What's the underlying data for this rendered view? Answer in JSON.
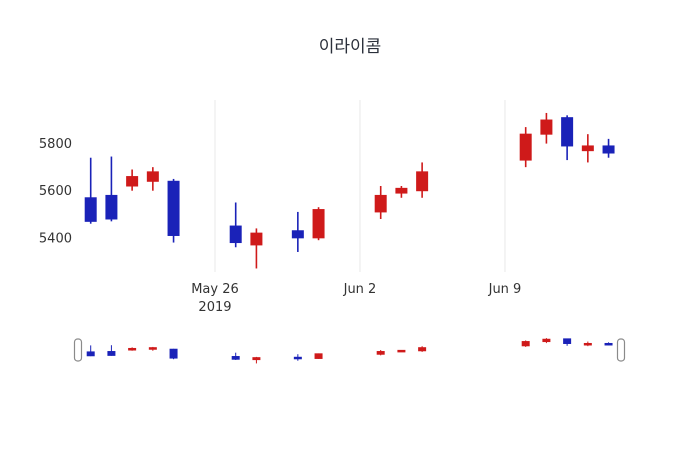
{
  "chart_data": {
    "type": "candlestick",
    "title": "이라이콤",
    "increasing_color": "#cf1a1a",
    "decreasing_color": "#1a22b8",
    "grid_color": "#e8e8e8",
    "text_color": "#333333",
    "background_color": "#ffffff",
    "legend": "none",
    "grid": "vertical-only",
    "ylim": [
      5255,
      5985
    ],
    "y_ticks": [
      5400,
      5600,
      5800
    ],
    "x_ticks": [
      {
        "day": 6,
        "label": "May 26",
        "sublabel": "2019"
      },
      {
        "day": 13,
        "label": "Jun 2",
        "sublabel": ""
      },
      {
        "day": 20,
        "label": "Jun 9",
        "sublabel": ""
      }
    ],
    "candles": [
      {
        "date": "2019-05-20",
        "day": 0,
        "open": 5570,
        "high": 5740,
        "low": 5460,
        "close": 5470
      },
      {
        "date": "2019-05-21",
        "day": 1,
        "open": 5580,
        "high": 5745,
        "low": 5470,
        "close": 5480
      },
      {
        "date": "2019-05-22",
        "day": 2,
        "open": 5620,
        "high": 5690,
        "low": 5600,
        "close": 5660
      },
      {
        "date": "2019-05-23",
        "day": 3,
        "open": 5640,
        "high": 5700,
        "low": 5600,
        "close": 5680
      },
      {
        "date": "2019-05-24",
        "day": 4,
        "open": 5640,
        "high": 5650,
        "low": 5380,
        "close": 5410
      },
      {
        "date": "2019-05-27",
        "day": 7,
        "open": 5450,
        "high": 5550,
        "low": 5360,
        "close": 5380
      },
      {
        "date": "2019-05-28",
        "day": 8,
        "open": 5370,
        "high": 5440,
        "low": 5270,
        "close": 5420
      },
      {
        "date": "2019-05-30",
        "day": 10,
        "open": 5430,
        "high": 5510,
        "low": 5340,
        "close": 5400
      },
      {
        "date": "2019-05-31",
        "day": 11,
        "open": 5400,
        "high": 5530,
        "low": 5390,
        "close": 5520
      },
      {
        "date": "2019-06-03",
        "day": 14,
        "open": 5510,
        "high": 5620,
        "low": 5480,
        "close": 5580
      },
      {
        "date": "2019-06-04",
        "day": 15,
        "open": 5590,
        "high": 5620,
        "low": 5570,
        "close": 5610
      },
      {
        "date": "2019-06-05",
        "day": 16,
        "open": 5600,
        "high": 5720,
        "low": 5570,
        "close": 5680
      },
      {
        "date": "2019-06-10",
        "day": 21,
        "open": 5730,
        "high": 5870,
        "low": 5700,
        "close": 5840
      },
      {
        "date": "2019-06-11",
        "day": 22,
        "open": 5840,
        "high": 5930,
        "low": 5800,
        "close": 5900
      },
      {
        "date": "2019-06-12",
        "day": 23,
        "open": 5910,
        "high": 5920,
        "low": 5730,
        "close": 5790
      },
      {
        "date": "2019-06-13",
        "day": 24,
        "open": 5770,
        "high": 5840,
        "low": 5720,
        "close": 5790
      },
      {
        "date": "2019-06-14",
        "day": 25,
        "open": 5790,
        "high": 5820,
        "low": 5740,
        "close": 5760
      }
    ]
  },
  "rangeslider": {
    "visible": true,
    "handle_color": "#ffffff",
    "handle_border": "#8a8a8a"
  }
}
